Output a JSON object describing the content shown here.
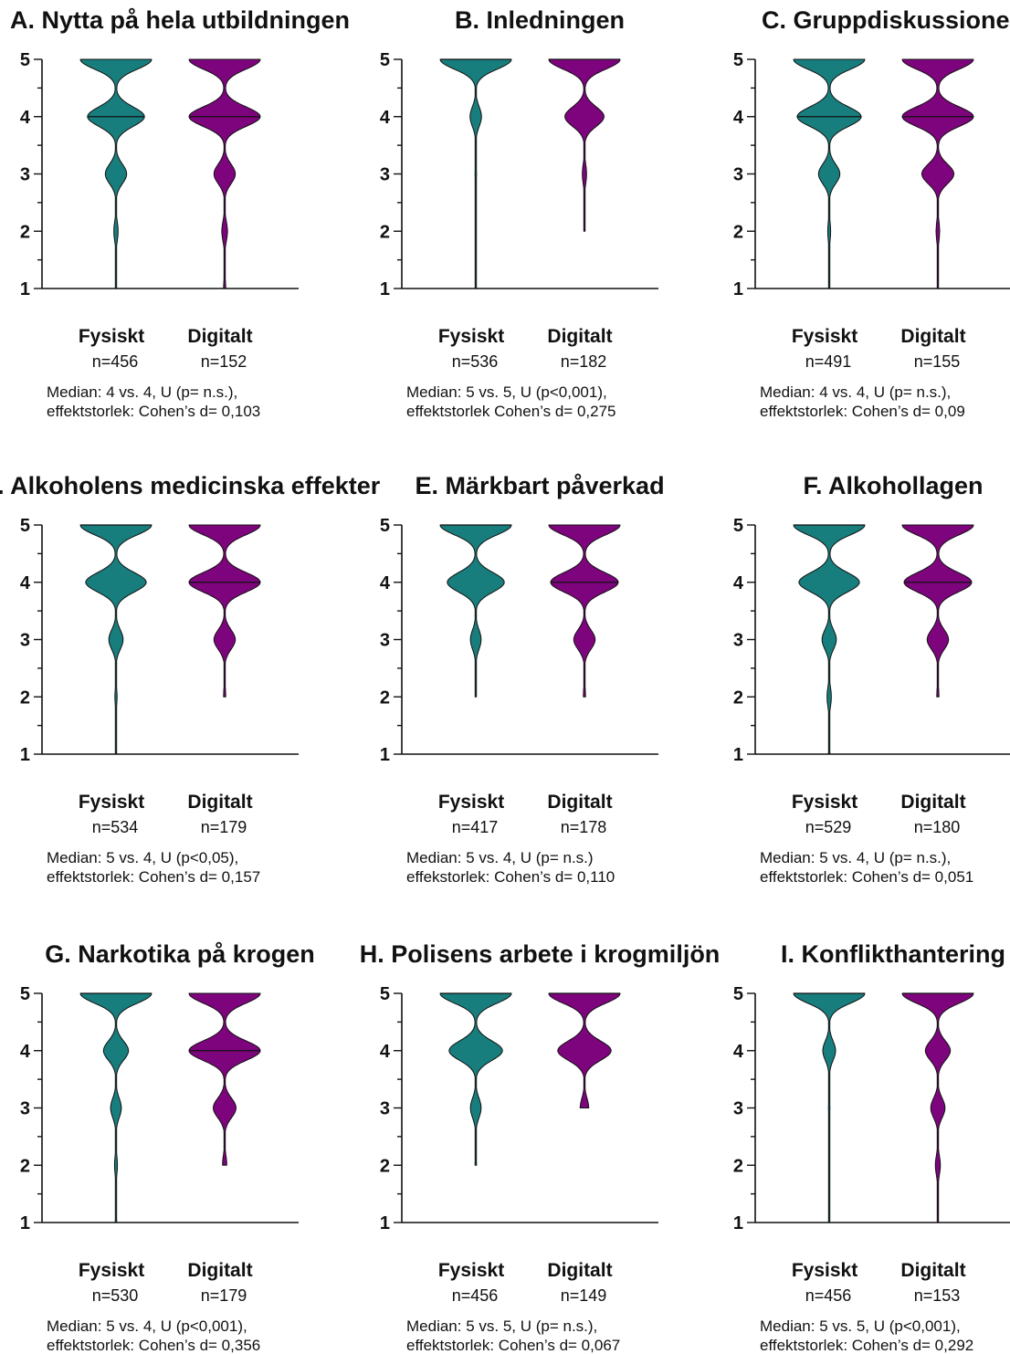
{
  "colors": {
    "fysiskt": "#187d7d",
    "digitalt": "#7e047e",
    "axis": "#111111"
  },
  "chart_data": [
    {
      "type": "violin",
      "title": "A. Nytta på hela utbildningen",
      "ylim": [
        1,
        5
      ],
      "yticks": [
        1,
        2,
        3,
        4,
        5
      ],
      "categories": [
        "Fysiskt",
        "Digitalt"
      ],
      "series": [
        {
          "name": "Fysiskt",
          "n_label": "n=456",
          "n": 456,
          "median": 4,
          "range": [
            1,
            5
          ],
          "profile": {
            "5": 1.0,
            "4": 0.8,
            "3": 0.3,
            "2": 0.06,
            "1": 0.0
          }
        },
        {
          "name": "Digitalt",
          "n_label": "n=152",
          "n": 152,
          "median": 4,
          "range": [
            1,
            5
          ],
          "profile": {
            "5": 1.0,
            "4": 1.0,
            "3": 0.3,
            "2": 0.08,
            "1": 0.03
          }
        }
      ],
      "stat_line1": "Median: 4 vs. 4, U (p= n.s.),",
      "stat_line2": "effektstorlek: Cohen’s d= 0,103"
    },
    {
      "type": "violin",
      "title": "B. Inledningen",
      "ylim": [
        1,
        5
      ],
      "yticks": [
        1,
        2,
        3,
        4,
        5
      ],
      "categories": [
        "Fysiskt",
        "Digitalt"
      ],
      "series": [
        {
          "name": "Fysiskt",
          "n_label": "n=536",
          "n": 536,
          "median": 5,
          "range": [
            1,
            5
          ],
          "profile": {
            "5": 1.0,
            "4": 0.16,
            "3": 0.02,
            "2": 0.0,
            "1": 0.0
          }
        },
        {
          "name": "Digitalt",
          "n_label": "n=182",
          "n": 182,
          "median": 5,
          "range": [
            2,
            5
          ],
          "profile": {
            "5": 1.0,
            "4": 0.55,
            "3": 0.06,
            "2": 0.0
          }
        }
      ],
      "stat_line1": "Median: 5 vs. 5, U (p<0,001),",
      "stat_line2": "effektstorlek Cohen’s d= 0,275"
    },
    {
      "type": "violin",
      "title": "C. Gruppdiskussionen",
      "ylim": [
        1,
        5
      ],
      "yticks": [
        1,
        2,
        3,
        4,
        5
      ],
      "categories": [
        "Fysiskt",
        "Digitalt"
      ],
      "series": [
        {
          "name": "Fysiskt",
          "n_label": "n=491",
          "n": 491,
          "median": 4,
          "range": [
            1,
            5
          ],
          "profile": {
            "5": 1.0,
            "4": 0.9,
            "3": 0.3,
            "2": 0.04,
            "1": 0.0
          }
        },
        {
          "name": "Digitalt",
          "n_label": "n=155",
          "n": 155,
          "median": 4,
          "range": [
            1,
            5
          ],
          "profile": {
            "5": 1.0,
            "4": 1.0,
            "3": 0.45,
            "2": 0.05,
            "1": 0.0
          }
        }
      ],
      "stat_line1": "Median: 4 vs. 4, U (p= n.s.),",
      "stat_line2": "effektstorlek: Cohen’s d= 0,09"
    },
    {
      "type": "violin",
      "title": "D. Alkoholens medicinska effekter",
      "ylim": [
        1,
        5
      ],
      "yticks": [
        1,
        2,
        3,
        4,
        5
      ],
      "categories": [
        "Fysiskt",
        "Digitalt"
      ],
      "series": [
        {
          "name": "Fysiskt",
          "n_label": "n=534",
          "n": 534,
          "median": 5,
          "range": [
            1,
            5
          ],
          "profile": {
            "5": 1.0,
            "4": 0.85,
            "3": 0.2,
            "2": 0.03,
            "1": 0.0
          }
        },
        {
          "name": "Digitalt",
          "n_label": "n=179",
          "n": 179,
          "median": 4,
          "range": [
            2,
            5
          ],
          "profile": {
            "5": 1.0,
            "4": 1.0,
            "3": 0.3,
            "2": 0.03
          }
        }
      ],
      "stat_line1": "Median: 5 vs. 4, U (p<0,05),",
      "stat_line2": "effektstorlek: Cohen’s d= 0,157"
    },
    {
      "type": "violin",
      "title": "E. Märkbart påverkad",
      "ylim": [
        1,
        5
      ],
      "yticks": [
        1,
        2,
        3,
        4,
        5
      ],
      "categories": [
        "Fysiskt",
        "Digitalt"
      ],
      "series": [
        {
          "name": "Fysiskt",
          "n_label": "n=417",
          "n": 417,
          "median": 5,
          "range": [
            2,
            5
          ],
          "profile": {
            "5": 1.0,
            "4": 0.8,
            "3": 0.15,
            "2": 0.0
          }
        },
        {
          "name": "Digitalt",
          "n_label": "n=178",
          "n": 178,
          "median": 4,
          "range": [
            2,
            5
          ],
          "profile": {
            "5": 1.0,
            "4": 0.95,
            "3": 0.3,
            "2": 0.03
          }
        }
      ],
      "stat_line1": "Median: 5 vs. 4, U (p= n.s.)",
      "stat_line2": "effekstorlek: Cohen’s d= 0,110"
    },
    {
      "type": "violin",
      "title": "F. Alkohollagen",
      "ylim": [
        1,
        5
      ],
      "yticks": [
        1,
        2,
        3,
        4,
        5
      ],
      "categories": [
        "Fysiskt",
        "Digitalt"
      ],
      "series": [
        {
          "name": "Fysiskt",
          "n_label": "n=529",
          "n": 529,
          "median": 5,
          "range": [
            1,
            5
          ],
          "profile": {
            "5": 1.0,
            "4": 0.85,
            "3": 0.2,
            "2": 0.06,
            "1": 0.02
          }
        },
        {
          "name": "Digitalt",
          "n_label": "n=180",
          "n": 180,
          "median": 4,
          "range": [
            2,
            5
          ],
          "profile": {
            "5": 1.0,
            "4": 0.95,
            "3": 0.3,
            "2": 0.03
          }
        }
      ],
      "stat_line1": "Median: 5 vs. 4, U (p= n.s.),",
      "stat_line2": "effektstorlek: Cohen’s d= 0,051"
    },
    {
      "type": "violin",
      "title": "G. Narkotika på krogen",
      "ylim": [
        1,
        5
      ],
      "yticks": [
        1,
        2,
        3,
        4,
        5
      ],
      "categories": [
        "Fysiskt",
        "Digitalt"
      ],
      "series": [
        {
          "name": "Fysiskt",
          "n_label": "n=530",
          "n": 530,
          "median": 5,
          "range": [
            1,
            5
          ],
          "profile": {
            "5": 1.0,
            "4": 0.35,
            "3": 0.15,
            "2": 0.04,
            "1": 0.02
          }
        },
        {
          "name": "Digitalt",
          "n_label": "n=179",
          "n": 179,
          "median": 4,
          "range": [
            2,
            5
          ],
          "profile": {
            "5": 1.0,
            "4": 1.0,
            "3": 0.32,
            "2": 0.06
          }
        }
      ],
      "stat_line1": "Median: 5 vs. 4, U (p<0,001),",
      "stat_line2": "effektstorlek: Cohen’s d= 0,356"
    },
    {
      "type": "violin",
      "title": "H. Polisens arbete i krogmiljön",
      "ylim": [
        1,
        5
      ],
      "yticks": [
        1,
        2,
        3,
        4,
        5
      ],
      "categories": [
        "Fysiskt",
        "Digitalt"
      ],
      "series": [
        {
          "name": "Fysiskt",
          "n_label": "n=456",
          "n": 456,
          "median": 5,
          "range": [
            2,
            5
          ],
          "profile": {
            "5": 1.0,
            "4": 0.75,
            "3": 0.15,
            "2": 0.02
          }
        },
        {
          "name": "Digitalt",
          "n_label": "n=149",
          "n": 149,
          "median": 5,
          "range": [
            3,
            5
          ],
          "profile": {
            "5": 1.0,
            "4": 0.75,
            "3": 0.12
          }
        }
      ],
      "stat_line1": "Median: 5 vs. 5, U (p= n.s.),",
      "stat_line2": "effektstorlek: Cohen’s d= 0,067"
    },
    {
      "type": "violin",
      "title": "I. Konflikthantering",
      "ylim": [
        1,
        5
      ],
      "yticks": [
        1,
        2,
        3,
        4,
        5
      ],
      "categories": [
        "Fysiskt",
        "Digitalt"
      ],
      "series": [
        {
          "name": "Fysiskt",
          "n_label": "n=456",
          "n": 456,
          "median": 5,
          "range": [
            1,
            5
          ],
          "profile": {
            "5": 1.0,
            "4": 0.18,
            "3": 0.02,
            "2": 0.0,
            "1": 0.0
          }
        },
        {
          "name": "Digitalt",
          "n_label": "n=153",
          "n": 153,
          "median": 5,
          "range": [
            1,
            5
          ],
          "profile": {
            "5": 1.0,
            "4": 0.35,
            "3": 0.2,
            "2": 0.07,
            "1": 0.0
          }
        }
      ],
      "stat_line1": "Median: 5 vs. 5, U (p<0,001),",
      "stat_line2": "effektstorlek: Cohen’s d= 0,292"
    }
  ]
}
